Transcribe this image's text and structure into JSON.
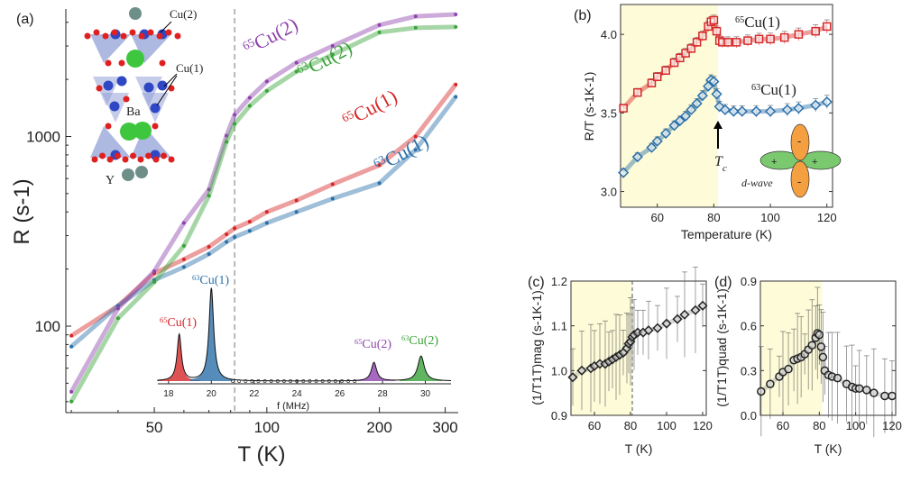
{
  "colors": {
    "red": "#d62728",
    "blue": "#2a6fa8",
    "purple": "#8e44ad",
    "green": "#3aa33a",
    "shade": "#fdfbd8",
    "black": "#222222"
  },
  "chart_data": [
    {
      "panel": "(a)",
      "type": "line",
      "xscale": "log",
      "yscale": "log",
      "xlabel": "T (K)",
      "ylabel": "R (s-1)",
      "xlim": [
        29,
        325
      ],
      "ylim": [
        35,
        4700
      ],
      "xticks": [
        50,
        100,
        200,
        300
      ],
      "yticks": [
        100,
        1000
      ],
      "tc_line": 82,
      "series": [
        {
          "name": "65Cu(1)",
          "color": "red",
          "x": [
            30,
            40,
            50,
            60,
            70,
            78,
            82,
            90,
            100,
            120,
            150,
            200,
            250,
            320
          ],
          "y": [
            89,
            128,
            190,
            225,
            262,
            305,
            328,
            355,
            400,
            460,
            560,
            706,
            1000,
            1880
          ]
        },
        {
          "name": "63Cu(1)",
          "color": "blue",
          "x": [
            30,
            40,
            50,
            60,
            70,
            78,
            82,
            90,
            100,
            120,
            150,
            200,
            250,
            320
          ],
          "y": [
            78,
            128,
            175,
            205,
            240,
            278,
            295,
            318,
            350,
            400,
            470,
            567,
            850,
            1620
          ]
        },
        {
          "name": "65Cu(2)",
          "color": "purple",
          "x": [
            30,
            40,
            50,
            60,
            70,
            78,
            82,
            90,
            100,
            120,
            150,
            200,
            250,
            320
          ],
          "y": [
            45,
            124,
            195,
            350,
            525,
            1010,
            1300,
            1600,
            1950,
            2450,
            3000,
            3870,
            4300,
            4400
          ]
        },
        {
          "name": "63Cu(2)",
          "color": "green",
          "x": [
            30,
            40,
            50,
            60,
            70,
            78,
            82,
            90,
            100,
            120,
            150,
            200,
            250,
            320
          ],
          "y": [
            40,
            110,
            171,
            265,
            487,
            937,
            1165,
            1450,
            1740,
            2200,
            2700,
            3540,
            3740,
            3780
          ]
        }
      ],
      "labels": {
        "65Cu2": {
          "sup": "65",
          "base": "Cu(2)"
        },
        "63Cu2": {
          "sup": "63",
          "base": "Cu(2)"
        },
        "65Cu1": {
          "sup": "65",
          "base": "Cu(1)"
        },
        "63Cu1": {
          "sup": "63",
          "base": "Cu(1)"
        }
      },
      "structure_labels": {
        "cu2": "Cu(2)",
        "cu1": "Cu(1)",
        "ba": "Ba",
        "y": "Y"
      },
      "inset": {
        "type": "line",
        "xlabel": "f (MHz)",
        "xlim": [
          17.5,
          31.2
        ],
        "xticks": [
          18,
          20,
          22,
          24,
          26,
          28,
          30
        ],
        "peaks": [
          {
            "name": "65Cu(1)",
            "sup": "65",
            "base": "Cu(1)",
            "color": "red",
            "center": 18.5,
            "height": 0.5,
            "width": 0.12
          },
          {
            "name": "63Cu(1)",
            "sup": "63",
            "base": "Cu(1)",
            "color": "blue",
            "center": 20.0,
            "height": 1.0,
            "width": 0.13
          },
          {
            "name": "65Cu(2)",
            "sup": "65",
            "base": "Cu(2)",
            "color": "purple",
            "center": 27.6,
            "height": 0.2,
            "width": 0.15
          },
          {
            "name": "63Cu(2)",
            "sup": "63",
            "base": "Cu(2)",
            "color": "green",
            "center": 29.8,
            "height": 0.27,
            "width": 0.18
          }
        ]
      }
    },
    {
      "panel": "(b)",
      "type": "scatter",
      "xlabel": "Temperature (K)",
      "ylabel": "R/T (s-1K-1)",
      "xlim": [
        47,
        122
      ],
      "ylim": [
        2.9,
        4.19
      ],
      "xticks": [
        60,
        80,
        100,
        120
      ],
      "yticks": [
        3.0,
        3.5,
        4.0
      ],
      "shade_to": 81.5,
      "yerr": 0.04,
      "series": [
        {
          "name": "65Cu(1)",
          "sup": "65",
          "base": "Cu(1)",
          "marker": "square",
          "color": "red",
          "x": [
            48,
            53,
            58,
            60,
            63,
            66,
            68,
            70,
            72,
            74,
            76,
            78,
            79,
            80,
            81,
            82,
            83,
            85,
            88,
            92,
            96,
            100,
            105,
            110,
            116,
            120
          ],
          "y": [
            3.53,
            3.63,
            3.69,
            3.73,
            3.77,
            3.82,
            3.85,
            3.88,
            3.91,
            3.95,
            3.99,
            4.05,
            4.08,
            4.09,
            4.02,
            3.96,
            3.95,
            3.95,
            3.95,
            3.96,
            3.97,
            3.97,
            3.98,
            4.0,
            4.02,
            4.05
          ]
        },
        {
          "name": "63Cu(1)",
          "sup": "63",
          "base": "Cu(1)",
          "marker": "diamond",
          "color": "blue",
          "x": [
            48,
            53,
            58,
            60,
            63,
            66,
            68,
            70,
            72,
            74,
            76,
            78,
            79,
            80,
            81,
            82,
            84,
            87,
            90,
            95,
            100,
            106,
            110,
            116,
            120
          ],
          "y": [
            3.12,
            3.22,
            3.28,
            3.32,
            3.37,
            3.42,
            3.45,
            3.48,
            3.52,
            3.56,
            3.61,
            3.67,
            3.71,
            3.7,
            3.62,
            3.54,
            3.52,
            3.51,
            3.51,
            3.51,
            3.51,
            3.52,
            3.53,
            3.55,
            3.57
          ]
        }
      ],
      "tc_label": "T",
      "tc_sub": "c",
      "orbital_label": "d-wave",
      "orbital_signs": {
        "plus": "+",
        "minus": "-"
      }
    },
    {
      "panel": "(c)",
      "type": "scatter",
      "xlabel": "T (K)",
      "ylabel": "(1/T1T)mag (s-1K-1)",
      "xlim": [
        47,
        122
      ],
      "ylim": [
        0.9,
        1.2
      ],
      "xticks": [
        60,
        80,
        100,
        120
      ],
      "yticks": [
        0.9,
        1.0,
        1.1,
        1.2
      ],
      "shade_to": 81,
      "tc_line": 81,
      "yerr": 0.07,
      "series": [
        {
          "marker": "diamond",
          "color": "black",
          "x": [
            48,
            53,
            58,
            60,
            63,
            66,
            68,
            70,
            72,
            74,
            76,
            78,
            79,
            80,
            81,
            82,
            84,
            87,
            90,
            95,
            100,
            106,
            110,
            116,
            120
          ],
          "y": [
            0.985,
            1.0,
            1.005,
            1.01,
            1.015,
            1.015,
            1.02,
            1.025,
            1.03,
            1.035,
            1.04,
            1.05,
            1.06,
            1.065,
            1.075,
            1.08,
            1.085,
            1.085,
            1.09,
            1.095,
            1.105,
            1.115,
            1.125,
            1.135,
            1.145
          ]
        }
      ]
    },
    {
      "panel": "(d)",
      "type": "scatter",
      "xlabel": "T (K)",
      "ylabel": "(1/T1T)quad (s-1K-1)",
      "xlim": [
        47.6,
        122
      ],
      "ylim": [
        0.0,
        0.9
      ],
      "xticks": [
        60,
        80,
        100,
        120
      ],
      "yticks": [
        0.0,
        0.3,
        0.6,
        0.9
      ],
      "shade_to": 81.5,
      "yerr": 0.22,
      "series": [
        {
          "marker": "circle",
          "color": "black",
          "x": [
            48,
            53,
            58,
            60,
            63,
            66,
            68,
            70,
            72,
            74,
            76,
            78,
            79,
            80,
            81,
            82,
            83,
            85,
            87,
            90,
            95,
            98,
            100,
            102,
            106,
            110,
            116,
            120
          ],
          "y": [
            0.16,
            0.21,
            0.26,
            0.29,
            0.31,
            0.37,
            0.38,
            0.39,
            0.41,
            0.44,
            0.47,
            0.52,
            0.55,
            0.54,
            0.46,
            0.39,
            0.3,
            0.27,
            0.26,
            0.25,
            0.21,
            0.19,
            0.18,
            0.18,
            0.17,
            0.15,
            0.13,
            0.13
          ]
        }
      ]
    }
  ]
}
